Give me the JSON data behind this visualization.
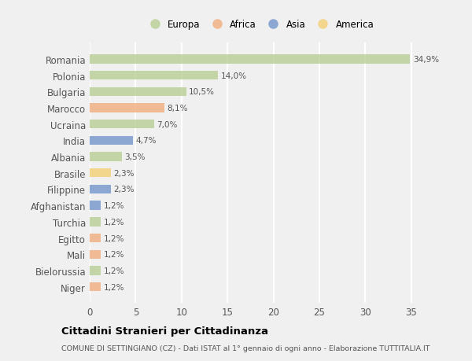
{
  "categories": [
    "Romania",
    "Polonia",
    "Bulgaria",
    "Marocco",
    "Ucraina",
    "India",
    "Albania",
    "Brasile",
    "Filippine",
    "Afghanistan",
    "Turchia",
    "Egitto",
    "Mali",
    "Bielorussia",
    "Niger"
  ],
  "values": [
    34.9,
    14.0,
    10.5,
    8.1,
    7.0,
    4.7,
    3.5,
    2.3,
    2.3,
    1.2,
    1.2,
    1.2,
    1.2,
    1.2,
    1.2
  ],
  "labels": [
    "34,9%",
    "14,0%",
    "10,5%",
    "8,1%",
    "7,0%",
    "4,7%",
    "3,5%",
    "2,3%",
    "2,3%",
    "1,2%",
    "1,2%",
    "1,2%",
    "1,2%",
    "1,2%",
    "1,2%"
  ],
  "continents": [
    "Europa",
    "Europa",
    "Europa",
    "Africa",
    "Europa",
    "Asia",
    "Europa",
    "America",
    "Asia",
    "Asia",
    "Europa",
    "Africa",
    "Africa",
    "Europa",
    "Africa"
  ],
  "continent_colors": {
    "Europa": "#b5cc8e",
    "Africa": "#f0a875",
    "Asia": "#6a8fc8",
    "America": "#f5ce6e"
  },
  "legend_order": [
    "Europa",
    "Africa",
    "Asia",
    "America"
  ],
  "xlim": [
    0,
    37
  ],
  "xticks": [
    0,
    5,
    10,
    15,
    20,
    25,
    30,
    35
  ],
  "title": "Cittadini Stranieri per Cittadinanza",
  "subtitle": "COMUNE DI SETTINGIANO (CZ) - Dati ISTAT al 1° gennaio di ogni anno - Elaborazione TUTTITALIA.IT",
  "background_color": "#f0f0f0",
  "plot_bg_color": "#f0f0f0",
  "grid_color": "#ffffff",
  "bar_alpha": 0.75
}
